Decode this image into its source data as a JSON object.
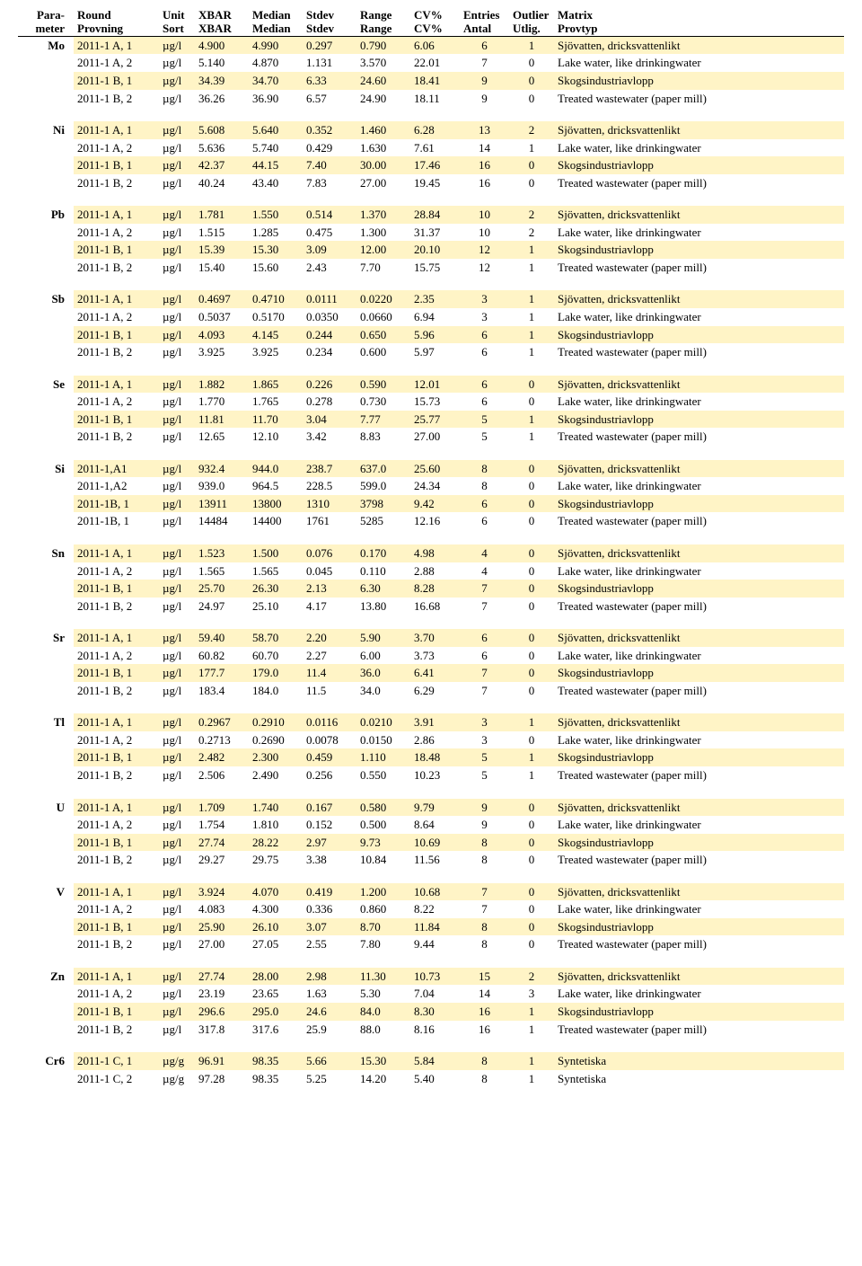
{
  "headers": {
    "row1": [
      "Para-",
      "Round",
      "Unit",
      "XBAR",
      "Median",
      "Stdev",
      "Range",
      "CV%",
      "Entries",
      "Outlier",
      "Matrix"
    ],
    "row2": [
      "meter",
      "Provning",
      "Sort",
      "XBAR",
      "Median",
      "Stdev",
      "Range",
      "CV%",
      "Antal",
      "Utlig.",
      "Provtyp"
    ]
  },
  "highlight_color": "#fff4c6",
  "groups": [
    {
      "param": "Mo",
      "rows": [
        {
          "hl": true,
          "round": "2011-1 A, 1",
          "unit": "µg/l",
          "xbar": "4.900",
          "median": "4.990",
          "stdev": "0.297",
          "range": "0.790",
          "cv": "6.06",
          "entries": "6",
          "outlier": "1",
          "matrix": "Sjövatten, dricksvattenlikt"
        },
        {
          "hl": false,
          "round": "2011-1 A, 2",
          "unit": "µg/l",
          "xbar": "5.140",
          "median": "4.870",
          "stdev": "1.131",
          "range": "3.570",
          "cv": "22.01",
          "entries": "7",
          "outlier": "0",
          "matrix": "Lake water, like drinkingwater"
        },
        {
          "hl": true,
          "round": "2011-1 B, 1",
          "unit": "µg/l",
          "xbar": "34.39",
          "median": "34.70",
          "stdev": "6.33",
          "range": "24.60",
          "cv": "18.41",
          "entries": "9",
          "outlier": "0",
          "matrix": "Skogsindustriavlopp"
        },
        {
          "hl": false,
          "round": "2011-1 B, 2",
          "unit": "µg/l",
          "xbar": "36.26",
          "median": "36.90",
          "stdev": "6.57",
          "range": "24.90",
          "cv": "18.11",
          "entries": "9",
          "outlier": "0",
          "matrix": "Treated wastewater (paper mill)"
        }
      ]
    },
    {
      "param": "Ni",
      "rows": [
        {
          "hl": true,
          "round": "2011-1 A, 1",
          "unit": "µg/l",
          "xbar": "5.608",
          "median": "5.640",
          "stdev": "0.352",
          "range": "1.460",
          "cv": "6.28",
          "entries": "13",
          "outlier": "2",
          "matrix": "Sjövatten, dricksvattenlikt"
        },
        {
          "hl": false,
          "round": "2011-1 A, 2",
          "unit": "µg/l",
          "xbar": "5.636",
          "median": "5.740",
          "stdev": "0.429",
          "range": "1.630",
          "cv": "7.61",
          "entries": "14",
          "outlier": "1",
          "matrix": "Lake water, like drinkingwater"
        },
        {
          "hl": true,
          "round": "2011-1 B, 1",
          "unit": "µg/l",
          "xbar": "42.37",
          "median": "44.15",
          "stdev": "7.40",
          "range": "30.00",
          "cv": "17.46",
          "entries": "16",
          "outlier": "0",
          "matrix": "Skogsindustriavlopp"
        },
        {
          "hl": false,
          "round": "2011-1 B, 2",
          "unit": "µg/l",
          "xbar": "40.24",
          "median": "43.40",
          "stdev": "7.83",
          "range": "27.00",
          "cv": "19.45",
          "entries": "16",
          "outlier": "0",
          "matrix": "Treated wastewater (paper mill)"
        }
      ]
    },
    {
      "param": "Pb",
      "rows": [
        {
          "hl": true,
          "round": "2011-1 A, 1",
          "unit": "µg/l",
          "xbar": "1.781",
          "median": "1.550",
          "stdev": "0.514",
          "range": "1.370",
          "cv": "28.84",
          "entries": "10",
          "outlier": "2",
          "matrix": "Sjövatten, dricksvattenlikt"
        },
        {
          "hl": false,
          "round": "2011-1 A, 2",
          "unit": "µg/l",
          "xbar": "1.515",
          "median": "1.285",
          "stdev": "0.475",
          "range": "1.300",
          "cv": "31.37",
          "entries": "10",
          "outlier": "2",
          "matrix": "Lake water, like drinkingwater"
        },
        {
          "hl": true,
          "round": "2011-1 B, 1",
          "unit": "µg/l",
          "xbar": "15.39",
          "median": "15.30",
          "stdev": "3.09",
          "range": "12.00",
          "cv": "20.10",
          "entries": "12",
          "outlier": "1",
          "matrix": "Skogsindustriavlopp"
        },
        {
          "hl": false,
          "round": "2011-1 B, 2",
          "unit": "µg/l",
          "xbar": "15.40",
          "median": "15.60",
          "stdev": "2.43",
          "range": "7.70",
          "cv": "15.75",
          "entries": "12",
          "outlier": "1",
          "matrix": "Treated wastewater (paper mill)"
        }
      ]
    },
    {
      "param": "Sb",
      "rows": [
        {
          "hl": true,
          "round": "2011-1 A, 1",
          "unit": "µg/l",
          "xbar": "0.4697",
          "median": "0.4710",
          "stdev": "0.0111",
          "range": "0.0220",
          "cv": "2.35",
          "entries": "3",
          "outlier": "1",
          "matrix": "Sjövatten, dricksvattenlikt"
        },
        {
          "hl": false,
          "round": "2011-1 A, 2",
          "unit": "µg/l",
          "xbar": "0.5037",
          "median": "0.5170",
          "stdev": "0.0350",
          "range": "0.0660",
          "cv": "6.94",
          "entries": "3",
          "outlier": "1",
          "matrix": "Lake water, like drinkingwater"
        },
        {
          "hl": true,
          "round": "2011-1 B, 1",
          "unit": "µg/l",
          "xbar": "4.093",
          "median": "4.145",
          "stdev": "0.244",
          "range": "0.650",
          "cv": "5.96",
          "entries": "6",
          "outlier": "1",
          "matrix": "Skogsindustriavlopp"
        },
        {
          "hl": false,
          "round": "2011-1 B, 2",
          "unit": "µg/l",
          "xbar": "3.925",
          "median": "3.925",
          "stdev": "0.234",
          "range": "0.600",
          "cv": "5.97",
          "entries": "6",
          "outlier": "1",
          "matrix": "Treated wastewater (paper mill)"
        }
      ]
    },
    {
      "param": "Se",
      "rows": [
        {
          "hl": true,
          "round": "2011-1 A, 1",
          "unit": "µg/l",
          "xbar": "1.882",
          "median": "1.865",
          "stdev": "0.226",
          "range": "0.590",
          "cv": "12.01",
          "entries": "6",
          "outlier": "0",
          "matrix": "Sjövatten, dricksvattenlikt"
        },
        {
          "hl": false,
          "round": "2011-1 A, 2",
          "unit": "µg/l",
          "xbar": "1.770",
          "median": "1.765",
          "stdev": "0.278",
          "range": "0.730",
          "cv": "15.73",
          "entries": "6",
          "outlier": "0",
          "matrix": "Lake water, like drinkingwater"
        },
        {
          "hl": true,
          "round": "2011-1 B, 1",
          "unit": "µg/l",
          "xbar": "11.81",
          "median": "11.70",
          "stdev": "3.04",
          "range": "7.77",
          "cv": "25.77",
          "entries": "5",
          "outlier": "1",
          "matrix": "Skogsindustriavlopp"
        },
        {
          "hl": false,
          "round": "2011-1 B, 2",
          "unit": "µg/l",
          "xbar": "12.65",
          "median": "12.10",
          "stdev": "3.42",
          "range": "8.83",
          "cv": "27.00",
          "entries": "5",
          "outlier": "1",
          "matrix": "Treated wastewater (paper mill)"
        }
      ]
    },
    {
      "param": "Si",
      "rows": [
        {
          "hl": true,
          "round": "2011-1,A1",
          "unit": "µg/l",
          "xbar": "932.4",
          "median": "944.0",
          "stdev": "238.7",
          "range": "637.0",
          "cv": "25.60",
          "entries": "8",
          "outlier": "0",
          "matrix": "Sjövatten, dricksvattenlikt"
        },
        {
          "hl": false,
          "round": "2011-1,A2",
          "unit": "µg/l",
          "xbar": "939.0",
          "median": "964.5",
          "stdev": "228.5",
          "range": "599.0",
          "cv": "24.34",
          "entries": "8",
          "outlier": "0",
          "matrix": "Lake water, like drinkingwater"
        },
        {
          "hl": true,
          "round": "2011-1B, 1",
          "unit": "µg/l",
          "xbar": "13911",
          "median": "13800",
          "stdev": "1310",
          "range": "3798",
          "cv": "9.42",
          "entries": "6",
          "outlier": "0",
          "matrix": "Skogsindustriavlopp"
        },
        {
          "hl": false,
          "round": "2011-1B, 1",
          "unit": "µg/l",
          "xbar": "14484",
          "median": "14400",
          "stdev": "1761",
          "range": "5285",
          "cv": "12.16",
          "entries": "6",
          "outlier": "0",
          "matrix": "Treated wastewater (paper mill)"
        }
      ]
    },
    {
      "param": "Sn",
      "rows": [
        {
          "hl": true,
          "round": "2011-1 A, 1",
          "unit": "µg/l",
          "xbar": "1.523",
          "median": "1.500",
          "stdev": "0.076",
          "range": "0.170",
          "cv": "4.98",
          "entries": "4",
          "outlier": "0",
          "matrix": "Sjövatten, dricksvattenlikt"
        },
        {
          "hl": false,
          "round": "2011-1 A, 2",
          "unit": "µg/l",
          "xbar": "1.565",
          "median": "1.565",
          "stdev": "0.045",
          "range": "0.110",
          "cv": "2.88",
          "entries": "4",
          "outlier": "0",
          "matrix": "Lake water, like drinkingwater"
        },
        {
          "hl": true,
          "round": "2011-1 B, 1",
          "unit": "µg/l",
          "xbar": "25.70",
          "median": "26.30",
          "stdev": "2.13",
          "range": "6.30",
          "cv": "8.28",
          "entries": "7",
          "outlier": "0",
          "matrix": "Skogsindustriavlopp"
        },
        {
          "hl": false,
          "round": "2011-1 B, 2",
          "unit": "µg/l",
          "xbar": "24.97",
          "median": "25.10",
          "stdev": "4.17",
          "range": "13.80",
          "cv": "16.68",
          "entries": "7",
          "outlier": "0",
          "matrix": "Treated wastewater (paper mill)"
        }
      ]
    },
    {
      "param": "Sr",
      "rows": [
        {
          "hl": true,
          "round": "2011-1 A, 1",
          "unit": "µg/l",
          "xbar": "59.40",
          "median": "58.70",
          "stdev": "2.20",
          "range": "5.90",
          "cv": "3.70",
          "entries": "6",
          "outlier": "0",
          "matrix": "Sjövatten, dricksvattenlikt"
        },
        {
          "hl": false,
          "round": "2011-1 A, 2",
          "unit": "µg/l",
          "xbar": "60.82",
          "median": "60.70",
          "stdev": "2.27",
          "range": "6.00",
          "cv": "3.73",
          "entries": "6",
          "outlier": "0",
          "matrix": "Lake water, like drinkingwater"
        },
        {
          "hl": true,
          "round": "2011-1 B, 1",
          "unit": "µg/l",
          "xbar": "177.7",
          "median": "179.0",
          "stdev": "11.4",
          "range": "36.0",
          "cv": "6.41",
          "entries": "7",
          "outlier": "0",
          "matrix": "Skogsindustriavlopp"
        },
        {
          "hl": false,
          "round": "2011-1 B, 2",
          "unit": "µg/l",
          "xbar": "183.4",
          "median": "184.0",
          "stdev": "11.5",
          "range": "34.0",
          "cv": "6.29",
          "entries": "7",
          "outlier": "0",
          "matrix": "Treated wastewater (paper mill)"
        }
      ]
    },
    {
      "param": "Tl",
      "rows": [
        {
          "hl": true,
          "round": "2011-1 A, 1",
          "unit": "µg/l",
          "xbar": "0.2967",
          "median": "0.2910",
          "stdev": "0.0116",
          "range": "0.0210",
          "cv": "3.91",
          "entries": "3",
          "outlier": "1",
          "matrix": "Sjövatten, dricksvattenlikt"
        },
        {
          "hl": false,
          "round": "2011-1 A, 2",
          "unit": "µg/l",
          "xbar": "0.2713",
          "median": "0.2690",
          "stdev": "0.0078",
          "range": "0.0150",
          "cv": "2.86",
          "entries": "3",
          "outlier": "0",
          "matrix": "Lake water, like drinkingwater"
        },
        {
          "hl": true,
          "round": "2011-1 B, 1",
          "unit": "µg/l",
          "xbar": "2.482",
          "median": "2.300",
          "stdev": "0.459",
          "range": "1.110",
          "cv": "18.48",
          "entries": "5",
          "outlier": "1",
          "matrix": "Skogsindustriavlopp"
        },
        {
          "hl": false,
          "round": "2011-1 B, 2",
          "unit": "µg/l",
          "xbar": "2.506",
          "median": "2.490",
          "stdev": "0.256",
          "range": "0.550",
          "cv": "10.23",
          "entries": "5",
          "outlier": "1",
          "matrix": "Treated wastewater (paper mill)"
        }
      ]
    },
    {
      "param": "U",
      "rows": [
        {
          "hl": true,
          "round": "2011-1 A, 1",
          "unit": "µg/l",
          "xbar": "1.709",
          "median": "1.740",
          "stdev": "0.167",
          "range": "0.580",
          "cv": "9.79",
          "entries": "9",
          "outlier": "0",
          "matrix": "Sjövatten, dricksvattenlikt"
        },
        {
          "hl": false,
          "round": "2011-1 A, 2",
          "unit": "µg/l",
          "xbar": "1.754",
          "median": "1.810",
          "stdev": "0.152",
          "range": "0.500",
          "cv": "8.64",
          "entries": "9",
          "outlier": "0",
          "matrix": "Lake water, like drinkingwater"
        },
        {
          "hl": true,
          "round": "2011-1 B, 1",
          "unit": "µg/l",
          "xbar": "27.74",
          "median": "28.22",
          "stdev": "2.97",
          "range": "9.73",
          "cv": "10.69",
          "entries": "8",
          "outlier": "0",
          "matrix": "Skogsindustriavlopp"
        },
        {
          "hl": false,
          "round": "2011-1 B, 2",
          "unit": "µg/l",
          "xbar": "29.27",
          "median": "29.75",
          "stdev": "3.38",
          "range": "10.84",
          "cv": "11.56",
          "entries": "8",
          "outlier": "0",
          "matrix": "Treated wastewater (paper mill)"
        }
      ]
    },
    {
      "param": "V",
      "rows": [
        {
          "hl": true,
          "round": "2011-1 A, 1",
          "unit": "µg/l",
          "xbar": "3.924",
          "median": "4.070",
          "stdev": "0.419",
          "range": "1.200",
          "cv": "10.68",
          "entries": "7",
          "outlier": "0",
          "matrix": "Sjövatten, dricksvattenlikt"
        },
        {
          "hl": false,
          "round": "2011-1 A, 2",
          "unit": "µg/l",
          "xbar": "4.083",
          "median": "4.300",
          "stdev": "0.336",
          "range": "0.860",
          "cv": "8.22",
          "entries": "7",
          "outlier": "0",
          "matrix": "Lake water, like drinkingwater"
        },
        {
          "hl": true,
          "round": "2011-1 B, 1",
          "unit": "µg/l",
          "xbar": "25.90",
          "median": "26.10",
          "stdev": "3.07",
          "range": "8.70",
          "cv": "11.84",
          "entries": "8",
          "outlier": "0",
          "matrix": "Skogsindustriavlopp"
        },
        {
          "hl": false,
          "round": "2011-1 B, 2",
          "unit": "µg/l",
          "xbar": "27.00",
          "median": "27.05",
          "stdev": "2.55",
          "range": "7.80",
          "cv": "9.44",
          "entries": "8",
          "outlier": "0",
          "matrix": "Treated wastewater (paper mill)"
        }
      ]
    },
    {
      "param": "Zn",
      "rows": [
        {
          "hl": true,
          "round": "2011-1 A, 1",
          "unit": "µg/l",
          "xbar": "27.74",
          "median": "28.00",
          "stdev": "2.98",
          "range": "11.30",
          "cv": "10.73",
          "entries": "15",
          "outlier": "2",
          "matrix": "Sjövatten, dricksvattenlikt"
        },
        {
          "hl": false,
          "round": "2011-1 A, 2",
          "unit": "µg/l",
          "xbar": "23.19",
          "median": "23.65",
          "stdev": "1.63",
          "range": "5.30",
          "cv": "7.04",
          "entries": "14",
          "outlier": "3",
          "matrix": "Lake water, like drinkingwater"
        },
        {
          "hl": true,
          "round": "2011-1 B, 1",
          "unit": "µg/l",
          "xbar": "296.6",
          "median": "295.0",
          "stdev": "24.6",
          "range": "84.0",
          "cv": "8.30",
          "entries": "16",
          "outlier": "1",
          "matrix": "Skogsindustriavlopp"
        },
        {
          "hl": false,
          "round": "2011-1 B, 2",
          "unit": "µg/l",
          "xbar": "317.8",
          "median": "317.6",
          "stdev": "25.9",
          "range": "88.0",
          "cv": "8.16",
          "entries": "16",
          "outlier": "1",
          "matrix": "Treated wastewater (paper mill)"
        }
      ]
    },
    {
      "param": "Cr6",
      "rows": [
        {
          "hl": true,
          "round": "2011-1 C, 1",
          "unit": "µg/g",
          "xbar": "96.91",
          "median": "98.35",
          "stdev": "5.66",
          "range": "15.30",
          "cv": "5.84",
          "entries": "8",
          "outlier": "1",
          "matrix": "Syntetiska"
        },
        {
          "hl": false,
          "round": "2011-1 C, 2",
          "unit": "µg/g",
          "xbar": "97.28",
          "median": "98.35",
          "stdev": "5.25",
          "range": "14.20",
          "cv": "5.40",
          "entries": "8",
          "outlier": "1",
          "matrix": "Syntetiska"
        }
      ]
    }
  ]
}
